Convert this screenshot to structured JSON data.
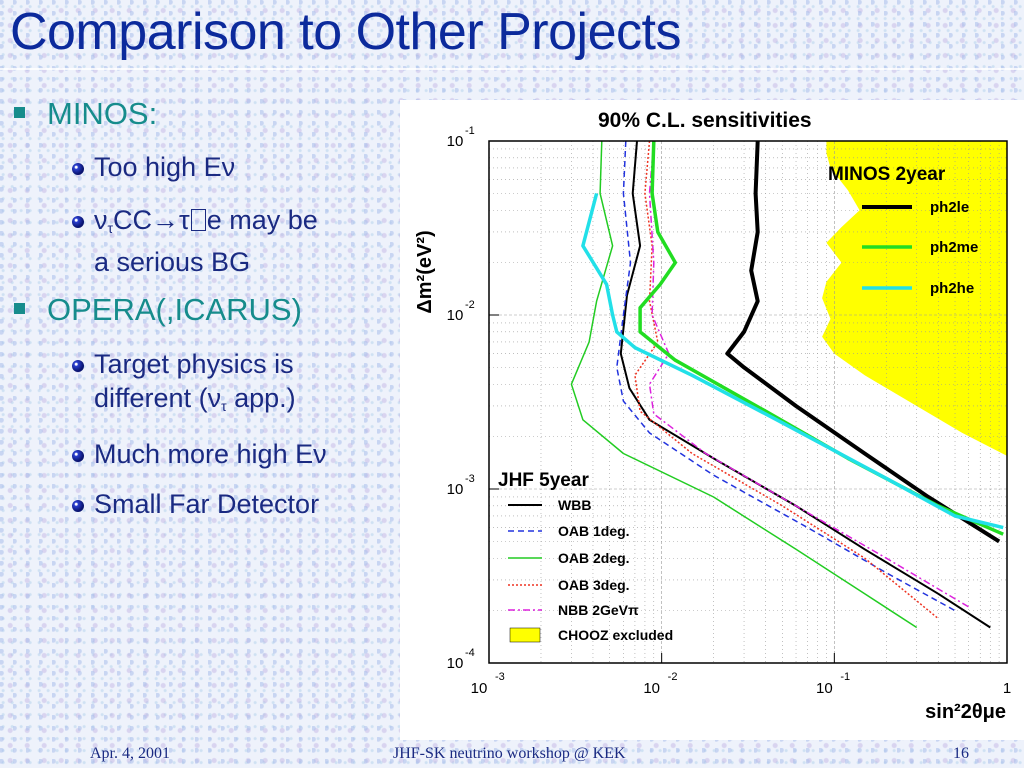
{
  "slide": {
    "title": "Comparison to Other Projects",
    "bullets": [
      {
        "label": "MINOS:",
        "items": [
          {
            "parts": [
              "Too high E",
              "ν"
            ]
          },
          {
            "parts": [
              "ν",
              "τ",
              "CC→τ",
              "e may be"
            ],
            "line2": "a serious BG"
          }
        ]
      },
      {
        "label": "OPERA(,ICARUS)",
        "items": [
          {
            "line1": "Target physics is",
            "line2_parts": [
              "different (ν",
              "τ",
              " app.)"
            ]
          },
          {
            "parts": [
              "Much more high E",
              "ν"
            ]
          },
          {
            "text": "Small Far Detector"
          }
        ]
      }
    ]
  },
  "footer": {
    "date": "Apr. 4, 2001",
    "event": "JHF-SK neutrino workshop @ KEK",
    "page": "16"
  },
  "chart_data": {
    "type": "line",
    "title": "90% C.L. sensitivities",
    "xlabel": "sin²2θμe",
    "ylabel": "Δm²(eV²)",
    "x_scale": "log",
    "y_scale": "log",
    "xlim": [
      0.001,
      1
    ],
    "ylim": [
      0.0001,
      0.1
    ],
    "x_ticks": [
      {
        "base": "10",
        "exp": "-3"
      },
      {
        "base": "10",
        "exp": "-2"
      },
      {
        "base": "10",
        "exp": "-1"
      },
      {
        "base": "1",
        "exp": ""
      }
    ],
    "y_ticks": [
      {
        "base": "10",
        "exp": "-1"
      },
      {
        "base": "10",
        "exp": "-2"
      },
      {
        "base": "10",
        "exp": "-3"
      },
      {
        "base": "10",
        "exp": "-4"
      }
    ],
    "grid": true,
    "legend_jhf": {
      "title": "JHF 5year",
      "placement": "bottom-left",
      "entries": [
        "WBB",
        "OAB 1deg.",
        "OAB 2deg.",
        "OAB 3deg.",
        "NBB 2GeVπ",
        "CHOOZ excluded"
      ]
    },
    "legend_minos": {
      "title": "MINOS 2year",
      "placement": "top-right",
      "entries": [
        "ph2le",
        "ph2me",
        "ph2he"
      ]
    },
    "chooz_region": {
      "name": "CHOOZ excluded",
      "color": "#ffff00",
      "boundary": [
        [
          0.09,
          0.1
        ],
        [
          0.09,
          0.085
        ],
        [
          0.095,
          0.07
        ],
        [
          0.12,
          0.052
        ],
        [
          0.14,
          0.04
        ],
        [
          0.11,
          0.032
        ],
        [
          0.09,
          0.026
        ],
        [
          0.11,
          0.02
        ],
        [
          0.09,
          0.0155
        ],
        [
          0.085,
          0.0125
        ],
        [
          0.095,
          0.0095
        ],
        [
          0.085,
          0.0075
        ],
        [
          0.1,
          0.006
        ],
        [
          0.15,
          0.0045
        ],
        [
          0.3,
          0.003
        ],
        [
          0.55,
          0.0021
        ],
        [
          1,
          0.00155
        ]
      ]
    },
    "series": [
      {
        "name": "WBB",
        "color": "#000000",
        "dash": "",
        "width": 2,
        "points": [
          [
            0.0072,
            0.1
          ],
          [
            0.0068,
            0.05
          ],
          [
            0.0075,
            0.025
          ],
          [
            0.0063,
            0.013
          ],
          [
            0.0058,
            0.006
          ],
          [
            0.0065,
            0.0038
          ],
          [
            0.0085,
            0.0025
          ],
          [
            0.02,
            0.0015
          ],
          [
            0.06,
            0.0008
          ],
          [
            0.15,
            0.00045
          ],
          [
            0.4,
            0.00025
          ],
          [
            0.8,
            0.00016
          ]
        ]
      },
      {
        "name": "OAB 1deg.",
        "color": "#2233dd",
        "dash": "6,4",
        "width": 1.5,
        "points": [
          [
            0.0062,
            0.1
          ],
          [
            0.006,
            0.05
          ],
          [
            0.0066,
            0.02
          ],
          [
            0.006,
            0.01
          ],
          [
            0.0055,
            0.005
          ],
          [
            0.006,
            0.0032
          ],
          [
            0.0085,
            0.0021
          ],
          [
            0.02,
            0.0012
          ],
          [
            0.07,
            0.0006
          ],
          [
            0.2,
            0.00033
          ],
          [
            0.5,
            0.0002
          ]
        ]
      },
      {
        "name": "OAB 2deg.",
        "color": "#22cc22",
        "dash": "",
        "width": 1.5,
        "points": [
          [
            0.0045,
            0.1
          ],
          [
            0.0044,
            0.05
          ],
          [
            0.0052,
            0.025
          ],
          [
            0.0042,
            0.012
          ],
          [
            0.0038,
            0.007
          ],
          [
            0.003,
            0.004
          ],
          [
            0.0035,
            0.0025
          ],
          [
            0.006,
            0.0016
          ],
          [
            0.02,
            0.0009
          ],
          [
            0.06,
            0.00045
          ],
          [
            0.15,
            0.00025
          ],
          [
            0.3,
            0.00016
          ]
        ]
      },
      {
        "name": "OAB 3deg.",
        "color": "#ee3322",
        "dash": "2,2",
        "width": 1.5,
        "points": [
          [
            0.0085,
            0.1
          ],
          [
            0.008,
            0.05
          ],
          [
            0.0088,
            0.025
          ],
          [
            0.0085,
            0.012
          ],
          [
            0.0095,
            0.007
          ],
          [
            0.007,
            0.0045
          ],
          [
            0.0075,
            0.0028
          ],
          [
            0.015,
            0.0016
          ],
          [
            0.05,
            0.0008
          ],
          [
            0.15,
            0.0004
          ],
          [
            0.4,
            0.00018
          ]
        ]
      },
      {
        "name": "NBB 2GeVπ",
        "color": "#dd22dd",
        "dash": "7,3,2,3",
        "width": 1.5,
        "points": [
          [
            0.009,
            0.1
          ],
          [
            0.0085,
            0.05
          ],
          [
            0.009,
            0.02
          ],
          [
            0.0088,
            0.01
          ],
          [
            0.011,
            0.006
          ],
          [
            0.0085,
            0.004
          ],
          [
            0.009,
            0.0027
          ],
          [
            0.018,
            0.0016
          ],
          [
            0.06,
            0.0008
          ],
          [
            0.2,
            0.0004
          ],
          [
            0.6,
            0.00021
          ]
        ]
      },
      {
        "name": "ph2le",
        "color": "#000000",
        "dash": "",
        "width": 4,
        "points": [
          [
            0.036,
            0.1
          ],
          [
            0.035,
            0.05
          ],
          [
            0.036,
            0.03
          ],
          [
            0.033,
            0.018
          ],
          [
            0.036,
            0.012
          ],
          [
            0.03,
            0.008
          ],
          [
            0.024,
            0.006
          ],
          [
            0.03,
            0.005
          ],
          [
            0.06,
            0.003
          ],
          [
            0.15,
            0.0016
          ],
          [
            0.35,
            0.0009
          ],
          [
            0.9,
            0.0005
          ]
        ]
      },
      {
        "name": "ph2me",
        "color": "#22dd22",
        "dash": "",
        "width": 3.5,
        "points": [
          [
            0.009,
            0.1
          ],
          [
            0.0088,
            0.05
          ],
          [
            0.0095,
            0.03
          ],
          [
            0.012,
            0.02
          ],
          [
            0.0098,
            0.015
          ],
          [
            0.0075,
            0.011
          ],
          [
            0.0075,
            0.008
          ],
          [
            0.012,
            0.0055
          ],
          [
            0.04,
            0.0028
          ],
          [
            0.12,
            0.0015
          ],
          [
            0.4,
            0.0008
          ],
          [
            0.95,
            0.00055
          ]
        ]
      },
      {
        "name": "ph2he",
        "color": "#22e0e8",
        "dash": "",
        "width": 3.5,
        "points": [
          [
            0.0042,
            0.05
          ],
          [
            0.0035,
            0.025
          ],
          [
            0.0048,
            0.015
          ],
          [
            0.0052,
            0.01
          ],
          [
            0.0055,
            0.008
          ],
          [
            0.007,
            0.0065
          ],
          [
            0.015,
            0.0045
          ],
          [
            0.05,
            0.0024
          ],
          [
            0.2,
            0.00115
          ],
          [
            0.5,
            0.0007
          ],
          [
            0.95,
            0.0006
          ]
        ]
      }
    ]
  }
}
